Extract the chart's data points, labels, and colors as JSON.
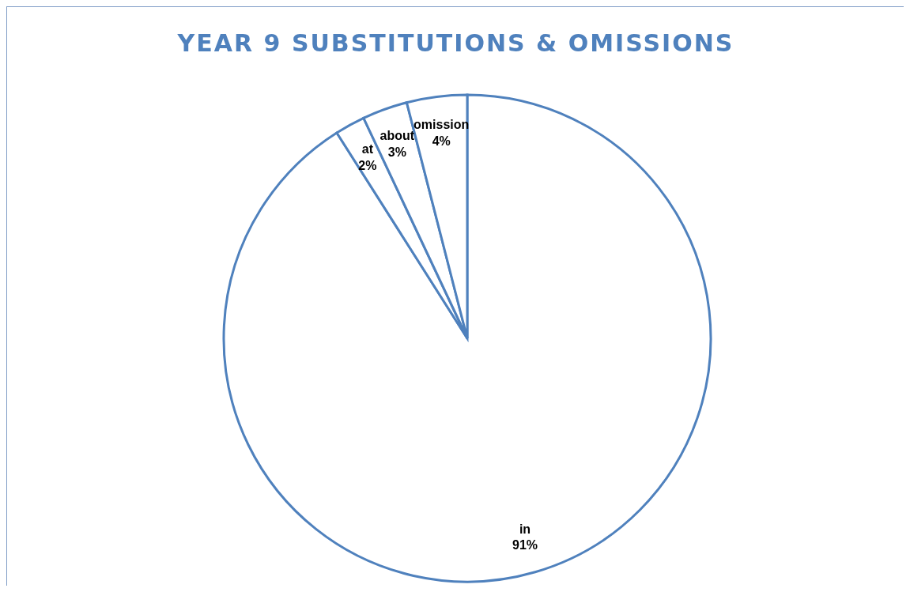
{
  "chart_data": {
    "type": "pie",
    "title": "YEAR 9 SUBSTITUTIONS & OMISSIONS",
    "categories": [
      "in",
      "at",
      "about",
      "omission"
    ],
    "values": [
      91,
      2,
      3,
      4
    ],
    "colors": [
      "#ffffff",
      "#ffffff",
      "#ffffff",
      "#ffffff"
    ],
    "value_labels": [
      "91%",
      "2%",
      "3%",
      "4%"
    ]
  }
}
